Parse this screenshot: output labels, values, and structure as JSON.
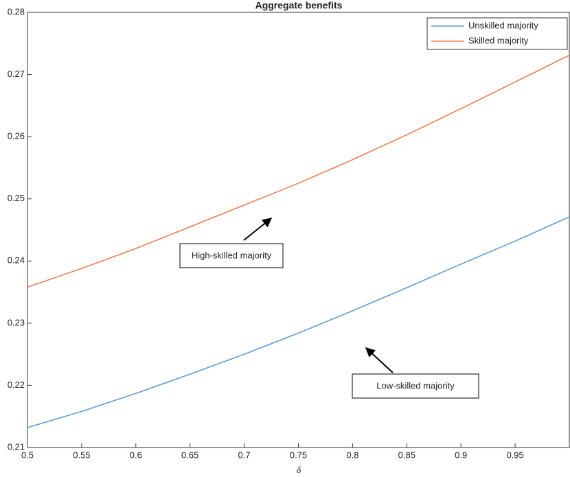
{
  "chart_data": {
    "type": "line",
    "title": "Aggregate benefits",
    "xlabel": "δ",
    "x": [
      0.5,
      0.55,
      0.6,
      0.65,
      0.7,
      0.75,
      0.8,
      0.85,
      0.9,
      0.95,
      1.0
    ],
    "series": [
      {
        "name": "Unskilled majority",
        "color": "#5b9bd5",
        "values": [
          0.2132,
          0.2158,
          0.2187,
          0.2218,
          0.225,
          0.2284,
          0.232,
          0.2357,
          0.2395,
          0.2432,
          0.2471
        ]
      },
      {
        "name": "Skilled majority",
        "color": "#ed7d4f",
        "values": [
          0.2358,
          0.2388,
          0.242,
          0.2455,
          0.249,
          0.2525,
          0.2563,
          0.2603,
          0.2645,
          0.2688,
          0.2731
        ]
      }
    ],
    "xlim": [
      0.5,
      1.0
    ],
    "xticks": [
      0.5,
      0.55,
      0.6,
      0.65,
      0.7,
      0.75,
      0.8,
      0.85,
      0.9,
      0.95
    ],
    "ylim": [
      0.21,
      0.28
    ],
    "yticks": [
      0.21,
      0.22,
      0.23,
      0.24,
      0.25,
      0.26,
      0.27,
      0.28
    ],
    "grid": false,
    "legend": "upper right",
    "annotations": [
      "High-skilled majority",
      "Low-skilled majority"
    ]
  }
}
